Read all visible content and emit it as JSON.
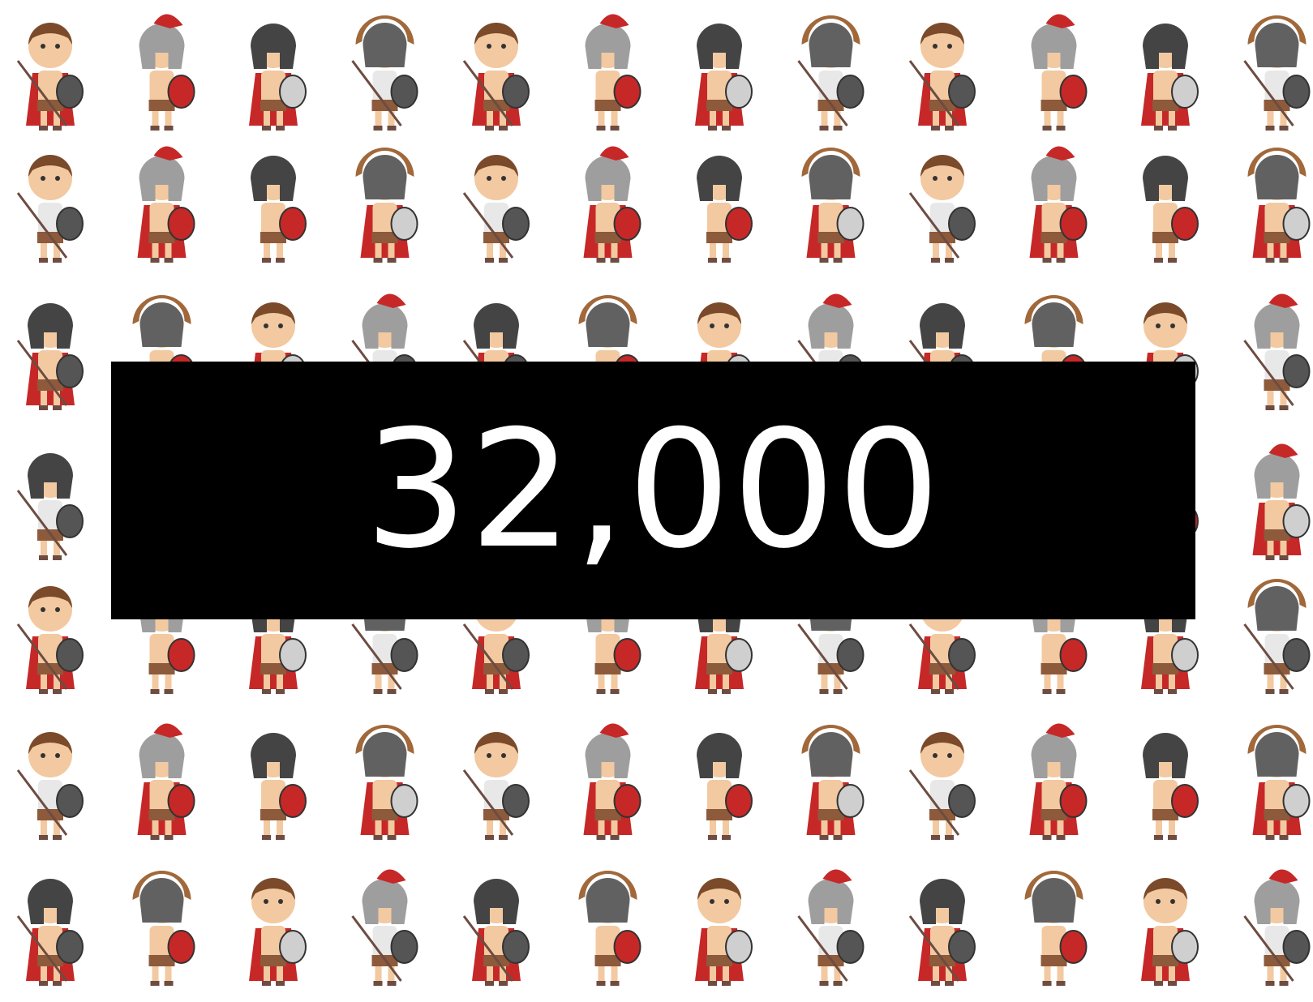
{
  "slide": {
    "headline": "32,000"
  }
}
